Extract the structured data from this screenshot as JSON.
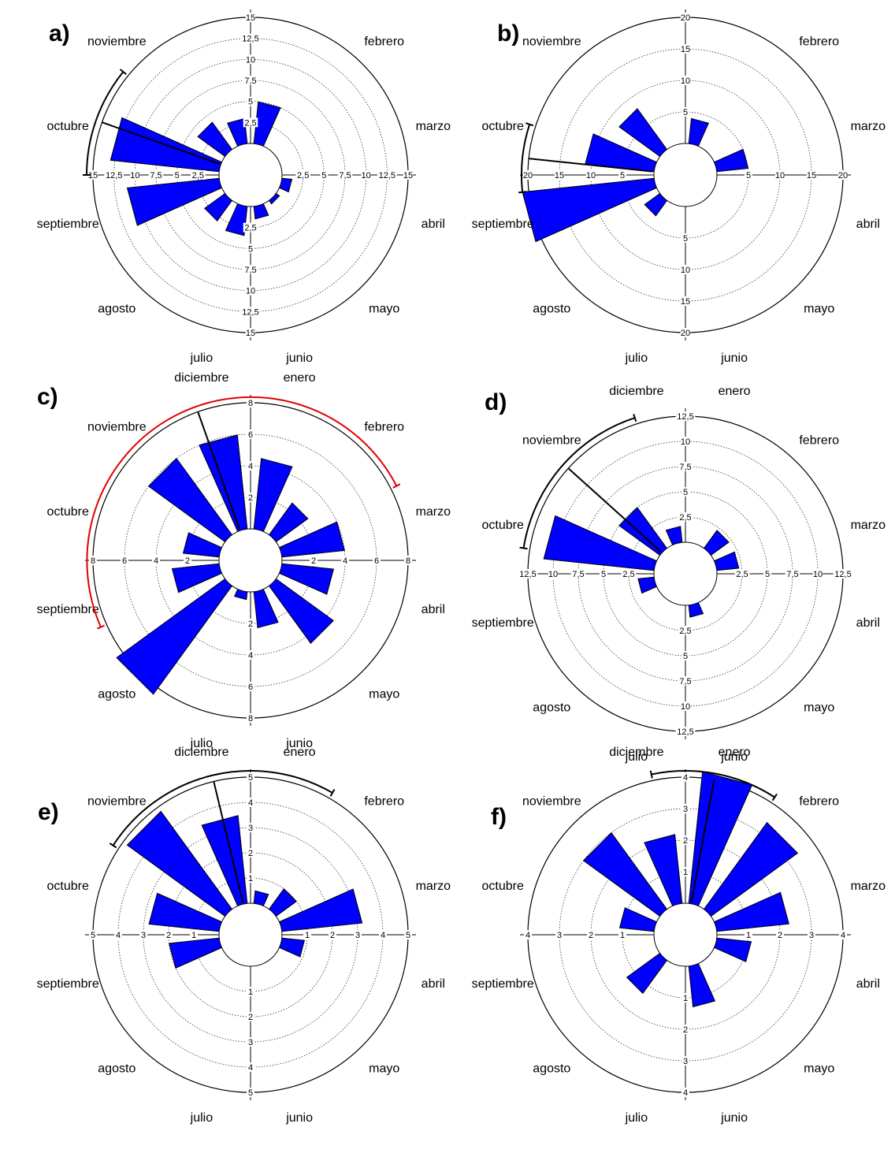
{
  "months": [
    "enero",
    "febrero",
    "marzo",
    "abril",
    "mayo",
    "junio",
    "julio",
    "agosto",
    "septiembre",
    "octubre",
    "noviembre",
    "diciembre"
  ],
  "chart_data": [
    {
      "type": "bar",
      "panel": "a)",
      "max": 15,
      "tick_labels": [
        "2,5",
        "5",
        "7,5",
        "10",
        "12,5",
        "15"
      ],
      "categories": [
        "enero",
        "febrero",
        "marzo",
        "abril",
        "mayo",
        "junio",
        "julio",
        "agosto",
        "septiembre",
        "octubre",
        "noviembre",
        "diciembre"
      ],
      "values": [
        5,
        0,
        0,
        1.2,
        0.5,
        1.5,
        3.5,
        3,
        11,
        13,
        4,
        3
      ],
      "mean_month": 9.65,
      "arc": [
        9.0,
        10.3
      ],
      "arc_color": "#000000"
    },
    {
      "type": "bar",
      "panel": "b)",
      "max": 20,
      "tick_labels": [
        "5",
        "10",
        "15",
        "20"
      ],
      "categories": [
        "enero",
        "febrero",
        "marzo",
        "abril",
        "mayo",
        "junio",
        "julio",
        "agosto",
        "septiembre",
        "octubre",
        "noviembre",
        "diciembre"
      ],
      "values": [
        4,
        0,
        5,
        0,
        0,
        0,
        0,
        3,
        21,
        11,
        8,
        0
      ],
      "mean_month": 9.2,
      "arc": [
        8.8,
        9.6
      ],
      "arc_color": "#000000"
    },
    {
      "type": "bar",
      "panel": "c)",
      "max": 8,
      "tick_labels": [
        "2",
        "4",
        "6",
        "8"
      ],
      "categories": [
        "enero",
        "febrero",
        "marzo",
        "abril",
        "mayo",
        "junio",
        "julio",
        "agosto",
        "septiembre",
        "octubre",
        "noviembre",
        "diciembre"
      ],
      "values": [
        4.5,
        2.5,
        4,
        3.3,
        4.5,
        2.3,
        0.5,
        8.5,
        3,
        2.3,
        6,
        6
      ],
      "mean_month": 11.35,
      "arc": [
        8.2,
        14.1
      ],
      "arc_color": "#e00000"
    },
    {
      "type": "bar",
      "panel": "d)",
      "max": 12.5,
      "tick_labels": [
        "2,5",
        "5",
        "7,5",
        "10",
        "12,5"
      ],
      "categories": [
        "enero",
        "febrero",
        "marzo",
        "abril",
        "mayo",
        "junio",
        "julio",
        "agosto",
        "septiembre",
        "octubre",
        "noviembre",
        "diciembre"
      ],
      "values": [
        0,
        2.2,
        2.2,
        0,
        0,
        1.2,
        0,
        0,
        1.6,
        11,
        5,
        1.6
      ],
      "mean_month": 10.4,
      "arc": [
        9.3,
        11.4
      ],
      "arc_color": "#000000"
    },
    {
      "type": "bar",
      "panel": "e)",
      "max": 5,
      "tick_labels": [
        "1",
        "2",
        "3",
        "4",
        "5"
      ],
      "categories": [
        "enero",
        "febrero",
        "marzo",
        "abril",
        "mayo",
        "junio",
        "julio",
        "agosto",
        "septiembre",
        "octubre",
        "noviembre",
        "diciembre"
      ],
      "values": [
        0.5,
        1,
        3.2,
        0.9,
        0,
        0,
        0,
        0,
        2,
        2.8,
        4.8,
        3.5
      ],
      "mean_month": 11.55,
      "arc": [
        10.1,
        13.0
      ],
      "arc_color": "#000000"
    },
    {
      "type": "bar",
      "panel": "f)",
      "max": 4,
      "tick_labels": [
        "1",
        "2",
        "3",
        "4"
      ],
      "categories": [
        "enero",
        "febrero",
        "marzo",
        "abril",
        "mayo",
        "junio",
        "julio",
        "agosto",
        "septiembre",
        "octubre",
        "noviembre",
        "diciembre"
      ],
      "values": [
        4.2,
        3.4,
        2.3,
        1.1,
        0,
        1.3,
        0,
        1.3,
        0,
        1.1,
        3,
        2.2
      ],
      "mean_month": 12.35,
      "arc": [
        11.6,
        13.1
      ],
      "arc_color": "#000000"
    }
  ]
}
